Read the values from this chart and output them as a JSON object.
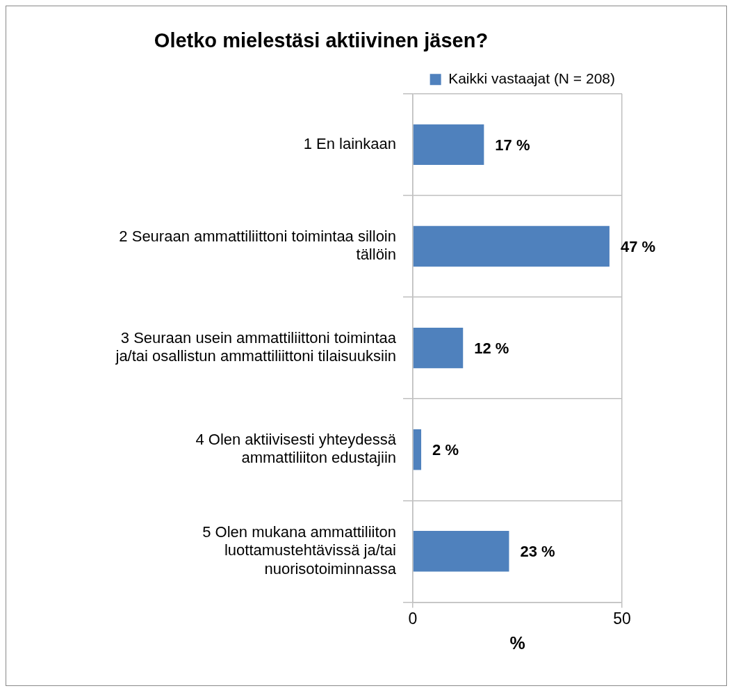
{
  "chart_data": {
    "type": "bar",
    "orientation": "horizontal",
    "title": "Oletko mielestäsi aktiivinen jäsen?",
    "xlabel": "%",
    "categories": [
      "1 En lainkaan",
      "2 Seuraan ammattiliittoni toimintaa silloin tällöin",
      "3 Seuraan usein ammattiliittoni toimintaa ja/tai osallistun ammattiliittoni tilaisuuksiin",
      "4 Olen aktiivisesti yhteydessä ammattiliiton edustajiin",
      "5 Olen mukana ammattiliiton luottamustehtävissä ja/tai nuorisotoiminnassa"
    ],
    "series": [
      {
        "name": "Kaikki vastaajat (N = 208)",
        "color": "#4f81bd",
        "values": [
          17,
          47,
          12,
          2,
          23
        ],
        "value_labels": [
          "17 %",
          "47 %",
          "12 %",
          "2 %",
          "23 %"
        ]
      }
    ],
    "xlim": [
      0,
      50
    ],
    "xticks": [
      0,
      50
    ],
    "grid": true,
    "legend": "top right"
  }
}
